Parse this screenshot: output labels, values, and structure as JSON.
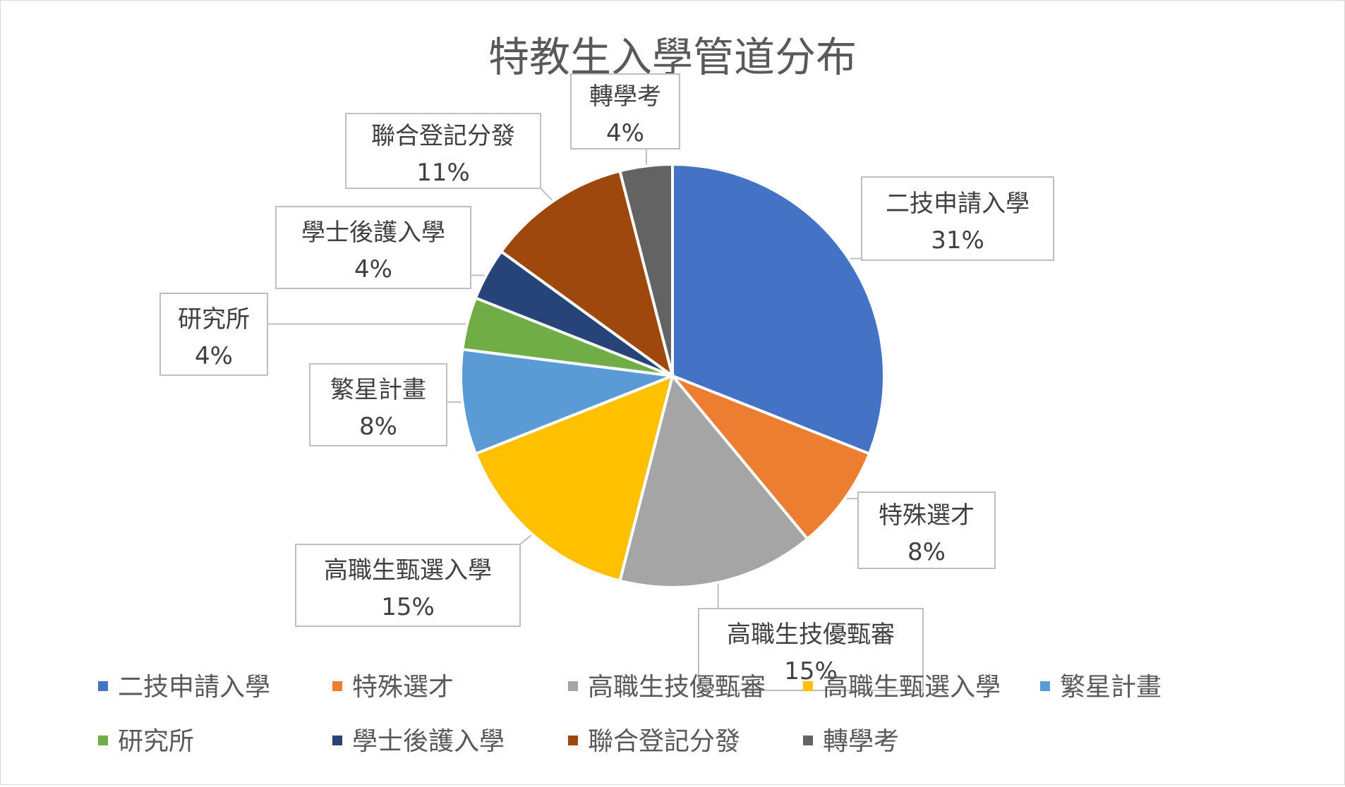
{
  "chart_data": {
    "type": "pie",
    "title": "特教生入學管道分布",
    "categories": [
      "二技申請入學",
      "特殊選才",
      "高職生技優甄審",
      "高職生甄選入學",
      "繁星計畫",
      "研究所",
      "學士後護入學",
      "聯合登記分發",
      "轉學考"
    ],
    "values": [
      31,
      8,
      15,
      15,
      8,
      4,
      4,
      11,
      4
    ],
    "labels": [
      "31%",
      "8%",
      "15%",
      "15%",
      "8%",
      "4%",
      "4%",
      "11%",
      "4%"
    ],
    "colors": [
      "#4472C4",
      "#ED7D31",
      "#A5A5A5",
      "#FFC000",
      "#5B9BD5",
      "#70AD47",
      "#264478",
      "#9E480E",
      "#636363"
    ],
    "legend_position": "bottom"
  }
}
